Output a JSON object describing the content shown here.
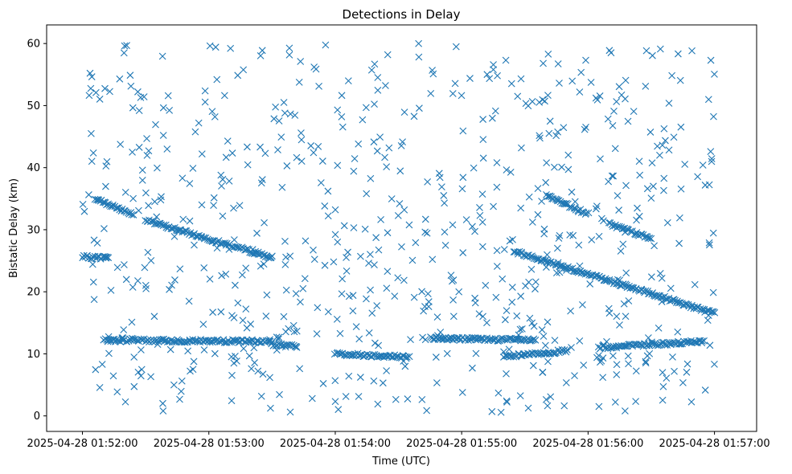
{
  "chart_data": {
    "type": "scatter",
    "title": "Detections in Delay",
    "xlabel": "Time (UTC)",
    "ylabel": "Bistatic Delay (km)",
    "x_range": [
      "2025-04-28 01:51:43",
      "2025-04-28 01:57:20"
    ],
    "ylim": [
      -2.5,
      63
    ],
    "x_ticks": [
      "2025-04-28 01:52:00",
      "2025-04-28 01:53:00",
      "2025-04-28 01:54:00",
      "2025-04-28 01:55:00",
      "2025-04-28 01:56:00",
      "2025-04-28 01:57:00"
    ],
    "y_ticks": [
      0,
      10,
      20,
      30,
      40,
      50,
      60
    ],
    "grid": false,
    "legend": "none",
    "marker": "x",
    "marker_color": "#1f77b4",
    "series": [
      {
        "x_start": "2025-04-28 01:52:00",
        "x_end": "2025-04-28 01:57:00",
        "tracks": [
          {
            "from": [
              "01:52:00",
              25.6
            ],
            "to": [
              "01:52:12",
              25.5
            ]
          },
          {
            "from": [
              "01:52:06",
              35.0
            ],
            "to": [
              "01:52:24",
              32.5
            ]
          },
          {
            "from": [
              "01:52:30",
              31.5
            ],
            "to": [
              "01:53:30",
              25.5
            ]
          },
          {
            "from": [
              "01:52:10",
              12.2
            ],
            "to": [
              "01:53:30",
              12.0
            ]
          },
          {
            "from": [
              "01:53:30",
              11.5
            ],
            "to": [
              "01:53:42",
              11.2
            ]
          },
          {
            "from": [
              "01:54:00",
              10.0
            ],
            "to": [
              "01:54:35",
              9.5
            ]
          },
          {
            "from": [
              "01:54:45",
              12.5
            ],
            "to": [
              "01:55:35",
              12.2
            ]
          },
          {
            "from": [
              "01:55:20",
              9.5
            ],
            "to": [
              "01:55:50",
              10.5
            ]
          },
          {
            "from": [
              "01:55:40",
              35.5
            ],
            "to": [
              "01:56:00",
              32.5
            ]
          },
          {
            "from": [
              "01:55:25",
              26.5
            ],
            "to": [
              "01:57:00",
              16.5
            ]
          },
          {
            "from": [
              "01:56:10",
              31.0
            ],
            "to": [
              "01:56:30",
              28.5
            ]
          },
          {
            "from": [
              "01:56:05",
              11.0
            ],
            "to": [
              "01:56:55",
              12.0
            ]
          }
        ],
        "clutter_count": 700,
        "clutter_y_range": [
          0.5,
          60
        ]
      }
    ]
  }
}
